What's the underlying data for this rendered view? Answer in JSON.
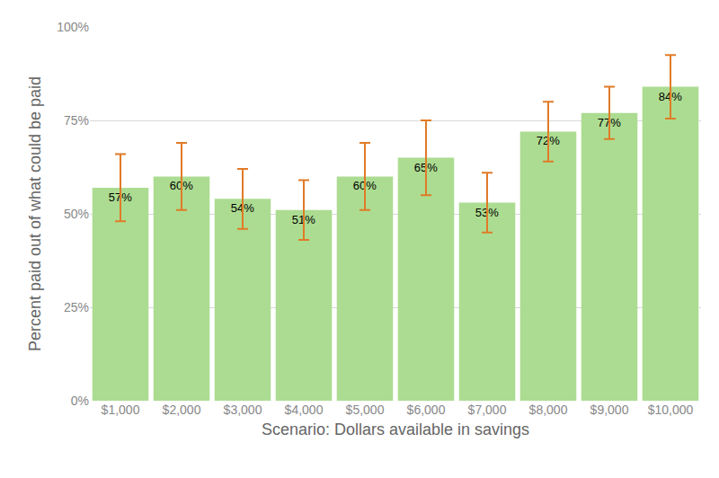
{
  "chart_data": {
    "type": "bar",
    "x_label": "Scenario: Dollars available in savings",
    "y_label": "Percent paid out of what could be paid",
    "categories": [
      "$1,000",
      "$2,000",
      "$3,000",
      "$4,000",
      "$5,000",
      "$6,000",
      "$7,000",
      "$8,000",
      "$9,000",
      "$10,000"
    ],
    "values": [
      57,
      60,
      54,
      51,
      60,
      65,
      53,
      72,
      77,
      84
    ],
    "value_labels": [
      "57%",
      "60%",
      "54%",
      "51%",
      "60%",
      "65%",
      "53%",
      "72%",
      "77%",
      "84%"
    ],
    "errors": [
      9,
      9,
      8,
      8,
      9,
      10,
      8,
      8,
      7,
      8.5
    ],
    "color": "#acdc91",
    "error_color": "#e07b28",
    "ylim": [
      0,
      100
    ],
    "yticks": [
      {
        "value": 0,
        "label": "0%"
      },
      {
        "value": 25,
        "label": "25%"
      },
      {
        "value": 50,
        "label": "50%"
      },
      {
        "value": 75,
        "label": "75%"
      },
      {
        "value": 100,
        "label": "100%"
      }
    ],
    "grid": true,
    "data_labels": true
  }
}
